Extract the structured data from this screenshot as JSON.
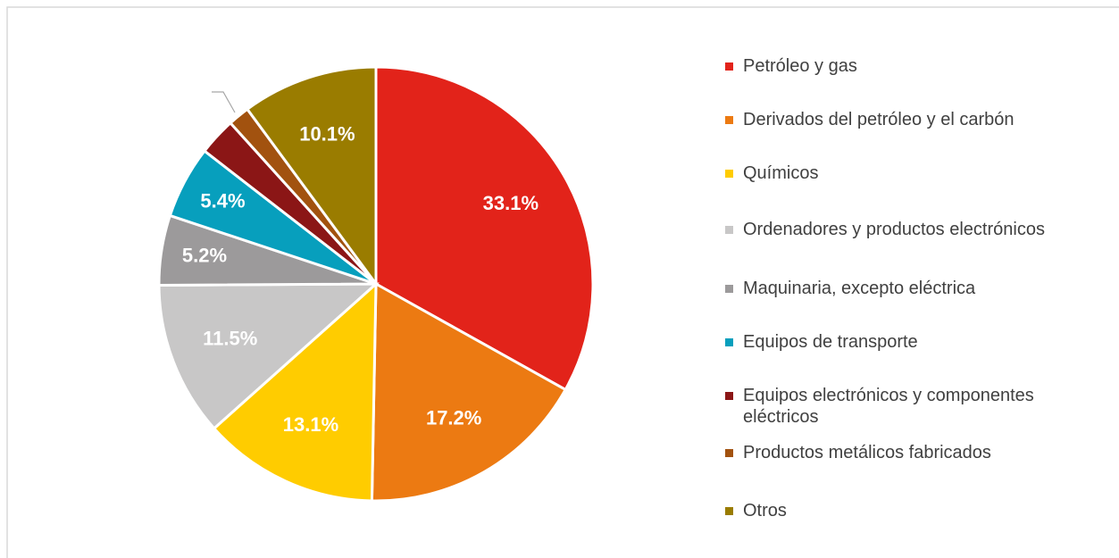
{
  "chart_data": {
    "type": "pie",
    "categories": [
      "Petróleo y gas",
      "Derivados del petróleo y el carbón",
      "Químicos",
      "Ordenadores y productos electrónicos",
      "Maquinaria, excepto eléctrica",
      "Equipos de transporte",
      "Equipos electrónicos y componentes eléctricos",
      "Productos metálicos fabricados",
      "Otros"
    ],
    "values": [
      33.1,
      17.2,
      13.1,
      11.5,
      5.2,
      5.4,
      2.8,
      1.6,
      10.1
    ],
    "value_labels": [
      "33.1%",
      "17.2%",
      "13.1%",
      "11.5%",
      "5.2%",
      "5.4%",
      null,
      null,
      "10.1%"
    ],
    "colors": [
      "#e2231a",
      "#ec7a12",
      "#ffcc00",
      "#c8c7c7",
      "#9c9a9b",
      "#079fbd",
      "#8b1616",
      "#a2520f",
      "#9a7c00"
    ],
    "legend": "right"
  }
}
